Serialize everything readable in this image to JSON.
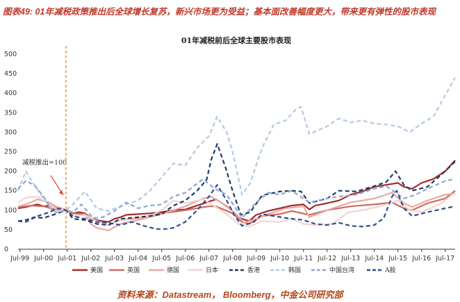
{
  "figure_title": "图表49: 01年减税政策推出后全球增长复苏，新兴市场更为受益；基本面改善幅度更大，带来更有弹性的股市表现",
  "source": "资料来源：Datastream， Bloomberg，中金公司研究部",
  "colors": {
    "title": "#c0392b",
    "source": "#b5451b",
    "policy_line": "#f0b882",
    "annotation_arrow": "#e0392b",
    "axis": "#333333",
    "grid": "none"
  },
  "chart_data": {
    "type": "line",
    "title": "01年减税前后全球主要股市表现",
    "xlabel": "",
    "ylabel": "",
    "grid": false,
    "legend_position": "bottom",
    "ylim": [
      0,
      500
    ],
    "yticks": [
      0,
      50,
      100,
      150,
      200,
      250,
      300,
      350,
      400,
      450,
      500
    ],
    "xlim": [
      1999.42,
      2017.92
    ],
    "xtick_labels": [
      "Jul-99",
      "Jul-00",
      "Jul-01",
      "Jul-02",
      "Jul-03",
      "Jul-04",
      "Jul-05",
      "Jul-06",
      "Jul-07",
      "Jul-08",
      "Jul-09",
      "Jul-10",
      "Jul-11",
      "Jul-12",
      "Jul-13",
      "Jul-14",
      "Jul-15",
      "Jul-16",
      "Jul-17"
    ],
    "xtick_values": [
      1999.5,
      2000.5,
      2001.5,
      2002.5,
      2003.5,
      2004.5,
      2005.5,
      2006.5,
      2007.5,
      2008.5,
      2009.5,
      2010.5,
      2011.5,
      2012.5,
      2013.5,
      2014.5,
      2015.5,
      2016.5,
      2017.5
    ],
    "annotation": {
      "text": "减税推出=100",
      "x": 2001.45,
      "y": 100
    },
    "policy_date_x": 2001.45,
    "series": [
      {
        "name": "美国",
        "color": "#a52a2a",
        "dash": "solid",
        "width": 2.2,
        "x": [
          1999.42,
          1999.75,
          2000.0,
          2000.25,
          2000.5,
          2000.75,
          2001.0,
          2001.25,
          2001.45,
          2001.75,
          2002.0,
          2002.25,
          2002.5,
          2002.75,
          2003.0,
          2003.25,
          2003.5,
          2003.75,
          2004.0,
          2004.5,
          2005.0,
          2005.5,
          2006.0,
          2006.5,
          2007.0,
          2007.5,
          2007.8,
          2008.25,
          2008.5,
          2008.8,
          2009.2,
          2009.5,
          2010.0,
          2010.5,
          2011.0,
          2011.5,
          2011.75,
          2012.0,
          2012.5,
          2013.0,
          2013.5,
          2014.0,
          2014.5,
          2015.0,
          2015.5,
          2015.75,
          2016.1,
          2016.5,
          2017.0,
          2017.5,
          2017.92
        ],
        "y": [
          105,
          108,
          112,
          115,
          110,
          112,
          108,
          105,
          100,
          92,
          95,
          92,
          80,
          75,
          72,
          70,
          78,
          82,
          88,
          90,
          92,
          95,
          100,
          102,
          112,
          122,
          128,
          110,
          98,
          80,
          72,
          88,
          98,
          105,
          112,
          115,
          102,
          112,
          118,
          125,
          140,
          148,
          160,
          165,
          170,
          160,
          155,
          170,
          180,
          200,
          228
        ]
      },
      {
        "name": "英国",
        "color": "#cf6a5f",
        "dash": "solid",
        "width": 2.2,
        "x": [
          1999.42,
          1999.75,
          2000.0,
          2000.5,
          2001.0,
          2001.45,
          2001.75,
          2002.25,
          2002.5,
          2003.0,
          2003.25,
          2003.75,
          2004.5,
          2005.5,
          2006.5,
          2007.5,
          2007.8,
          2008.5,
          2008.9,
          2009.2,
          2009.75,
          2010.5,
          2011.0,
          2011.75,
          2012.5,
          2013.5,
          2014.5,
          2015.25,
          2015.75,
          2016.1,
          2016.75,
          2017.5,
          2017.92
        ],
        "y": [
          108,
          110,
          112,
          110,
          102,
          100,
          92,
          90,
          78,
          68,
          62,
          75,
          80,
          92,
          100,
          110,
          110,
          92,
          70,
          65,
          85,
          90,
          98,
          88,
          100,
          110,
          115,
          120,
          105,
          100,
          118,
          130,
          150
        ]
      },
      {
        "name": "德国",
        "color": "#e8a9a3",
        "dash": "solid",
        "width": 2.2,
        "x": [
          1999.42,
          1999.75,
          2000.25,
          2000.75,
          2001.0,
          2001.45,
          2001.75,
          2002.25,
          2002.5,
          2002.75,
          2003.25,
          2003.75,
          2004.5,
          2005.5,
          2006.5,
          2007.25,
          2007.6,
          2008.0,
          2008.5,
          2009.0,
          2009.5,
          2010.0,
          2010.75,
          2011.5,
          2011.75,
          2012.5,
          2013.5,
          2014.5,
          2015.25,
          2015.75,
          2016.1,
          2016.75,
          2017.5,
          2017.92
        ],
        "y": [
          110,
          115,
          128,
          120,
          110,
          100,
          85,
          88,
          65,
          55,
          48,
          65,
          75,
          90,
          110,
          130,
          135,
          120,
          98,
          68,
          78,
          90,
          105,
          110,
          82,
          100,
          120,
          130,
          145,
          118,
          108,
          125,
          140,
          142
        ]
      },
      {
        "name": "日本",
        "color": "#f3d3cf",
        "dash": "solid",
        "width": 2.2,
        "x": [
          1999.42,
          1999.75,
          2000.25,
          2000.75,
          2001.0,
          2001.45,
          2001.75,
          2002.25,
          2002.75,
          2003.25,
          2003.75,
          2004.5,
          2005.0,
          2005.5,
          2006.0,
          2006.5,
          2007.25,
          2007.75,
          2008.25,
          2008.75,
          2009.2,
          2009.75,
          2010.5,
          2011.0,
          2011.5,
          2012.0,
          2012.75,
          2013.4,
          2014.0,
          2014.75,
          2015.5,
          2016.0,
          2016.5,
          2017.25,
          2017.92
        ],
        "y": [
          120,
          132,
          135,
          115,
          105,
          100,
          85,
          88,
          72,
          62,
          75,
          82,
          85,
          100,
          125,
          118,
          128,
          110,
          90,
          65,
          58,
          72,
          70,
          78,
          65,
          62,
          65,
          95,
          100,
          110,
          125,
          100,
          95,
          115,
          145
        ]
      },
      {
        "name": "香港",
        "color": "#1f3a68",
        "dash": "6 4",
        "width": 2.2,
        "x": [
          1999.42,
          1999.75,
          2000.1,
          2000.5,
          2001.0,
          2001.45,
          2001.75,
          2002.25,
          2002.75,
          2003.25,
          2003.75,
          2004.5,
          2005.0,
          2005.5,
          2006.0,
          2006.5,
          2007.0,
          2007.4,
          2007.6,
          2007.85,
          2008.2,
          2008.5,
          2008.85,
          2009.25,
          2009.75,
          2010.5,
          2011.0,
          2011.4,
          2011.75,
          2012.5,
          2013.0,
          2013.75,
          2014.5,
          2015.0,
          2015.4,
          2015.75,
          2016.1,
          2016.75,
          2017.5,
          2017.92
        ],
        "y": [
          72,
          75,
          82,
          80,
          90,
          100,
          78,
          75,
          65,
          62,
          78,
          82,
          85,
          90,
          112,
          125,
          150,
          178,
          230,
          270,
          210,
          150,
          88,
          95,
          138,
          148,
          150,
          148,
          118,
          130,
          150,
          148,
          162,
          172,
          200,
          165,
          150,
          160,
          200,
          225
        ]
      },
      {
        "name": "韩国",
        "color": "#b4c8e2",
        "dash": "6 4",
        "width": 2.2,
        "x": [
          1999.42,
          1999.75,
          2000.0,
          2000.4,
          2000.75,
          2001.0,
          2001.45,
          2001.75,
          2002.25,
          2002.75,
          2003.25,
          2003.75,
          2004.5,
          2005.0,
          2005.5,
          2006.0,
          2006.5,
          2007.0,
          2007.5,
          2007.85,
          2008.25,
          2008.5,
          2008.9,
          2009.25,
          2009.75,
          2010.25,
          2010.75,
          2011.2,
          2011.4,
          2011.75,
          2012.5,
          2013.0,
          2013.5,
          2014.0,
          2014.5,
          2015.0,
          2015.5,
          2016.0,
          2016.5,
          2017.0,
          2017.5,
          2017.92
        ],
        "y": [
          150,
          200,
          175,
          138,
          110,
          95,
          100,
          115,
          148,
          105,
          98,
          110,
          125,
          150,
          185,
          220,
          215,
          260,
          290,
          340,
          300,
          250,
          140,
          170,
          260,
          320,
          330,
          360,
          365,
          295,
          315,
          335,
          325,
          330,
          322,
          320,
          315,
          300,
          322,
          340,
          395,
          440
        ]
      },
      {
        "name": "中国台湾",
        "color": "#8aa8d2",
        "dash": "6 4",
        "width": 2.2,
        "x": [
          1999.42,
          1999.75,
          2000.1,
          2000.5,
          2000.9,
          2001.2,
          2001.45,
          2001.75,
          2002.1,
          2002.6,
          2003.0,
          2003.5,
          2004.0,
          2004.5,
          2005.0,
          2005.5,
          2006.0,
          2006.5,
          2007.25,
          2007.75,
          2008.25,
          2008.9,
          2009.5,
          2010.0,
          2010.5,
          2011.0,
          2011.75,
          2012.5,
          2013.0,
          2013.75,
          2014.5,
          2015.0,
          2015.75,
          2016.25,
          2016.75,
          2017.5,
          2017.92
        ],
        "y": [
          155,
          175,
          165,
          135,
          95,
          95,
          100,
          95,
          115,
          80,
          82,
          98,
          120,
          105,
          112,
          115,
          135,
          145,
          180,
          155,
          140,
          80,
          120,
          145,
          140,
          150,
          120,
          130,
          135,
          140,
          155,
          162,
          130,
          140,
          155,
          175,
          180
        ]
      },
      {
        "name": "A股",
        "color": "#2e4f8a",
        "dash": "6 4",
        "width": 2.2,
        "x": [
          1999.42,
          1999.75,
          2000.25,
          2000.75,
          2001.1,
          2001.45,
          2001.75,
          2002.25,
          2002.75,
          2003.25,
          2003.75,
          2004.25,
          2004.75,
          2005.25,
          2005.75,
          2006.0,
          2006.5,
          2007.0,
          2007.5,
          2007.85,
          2008.25,
          2008.6,
          2008.9,
          2009.4,
          2009.75,
          2010.25,
          2010.75,
          2011.5,
          2012.0,
          2012.5,
          2013.0,
          2013.5,
          2014.0,
          2014.5,
          2014.9,
          2015.25,
          2015.45,
          2015.75,
          2016.1,
          2016.75,
          2017.5,
          2017.92
        ],
        "y": [
          72,
          70,
          85,
          95,
          105,
          100,
          85,
          78,
          70,
          68,
          62,
          70,
          60,
          52,
          52,
          55,
          70,
          100,
          135,
          165,
          125,
          85,
          60,
          70,
          90,
          85,
          80,
          75,
          65,
          62,
          68,
          60,
          58,
          62,
          80,
          135,
          150,
          105,
          85,
          95,
          105,
          110
        ]
      }
    ]
  }
}
